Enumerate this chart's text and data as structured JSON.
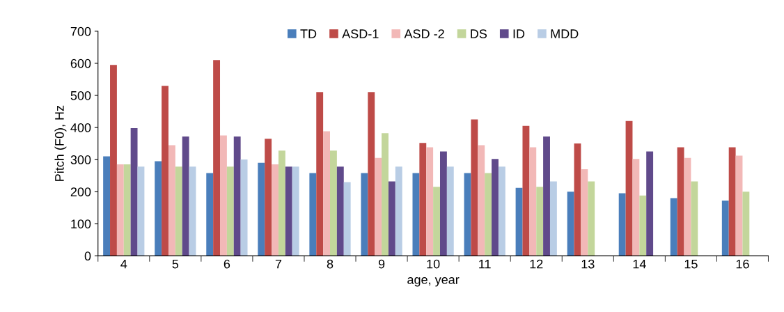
{
  "chart_data": {
    "type": "bar",
    "xlabel": "age, year",
    "ylabel": "Pitch (F0), Hz",
    "categories": [
      "4",
      "5",
      "6",
      "7",
      "8",
      "9",
      "10",
      "11",
      "12",
      "13",
      "14",
      "15",
      "16"
    ],
    "series": [
      {
        "name": "TD",
        "color": "#4a7ebb",
        "values": [
          310,
          295,
          258,
          290,
          258,
          258,
          258,
          258,
          212,
          200,
          195,
          180,
          172
        ]
      },
      {
        "name": "ASD-1",
        "color": "#be4b48",
        "values": [
          595,
          530,
          610,
          365,
          510,
          510,
          352,
          425,
          405,
          350,
          420,
          338,
          338
        ]
      },
      {
        "name": "ASD -2",
        "color": "#f2b8b7",
        "values": [
          285,
          345,
          375,
          285,
          388,
          305,
          338,
          345,
          338,
          270,
          302,
          305,
          312
        ]
      },
      {
        "name": "DS",
        "color": "#c3d69b",
        "values": [
          285,
          278,
          278,
          328,
          328,
          382,
          215,
          258,
          215,
          232,
          188,
          232,
          200
        ]
      },
      {
        "name": "ID",
        "color": "#604a8b",
        "values": [
          398,
          372,
          372,
          278,
          278,
          232,
          325,
          302,
          372,
          null,
          325,
          null,
          null
        ]
      },
      {
        "name": "MDD",
        "color": "#b9cde5",
        "values": [
          278,
          278,
          300,
          278,
          230,
          278,
          278,
          278,
          232,
          null,
          null,
          null,
          null
        ]
      }
    ],
    "ylim": [
      0,
      700
    ],
    "yticks": [
      0,
      100,
      200,
      300,
      400,
      500,
      600,
      700
    ],
    "grid": false,
    "legend": "top"
  }
}
